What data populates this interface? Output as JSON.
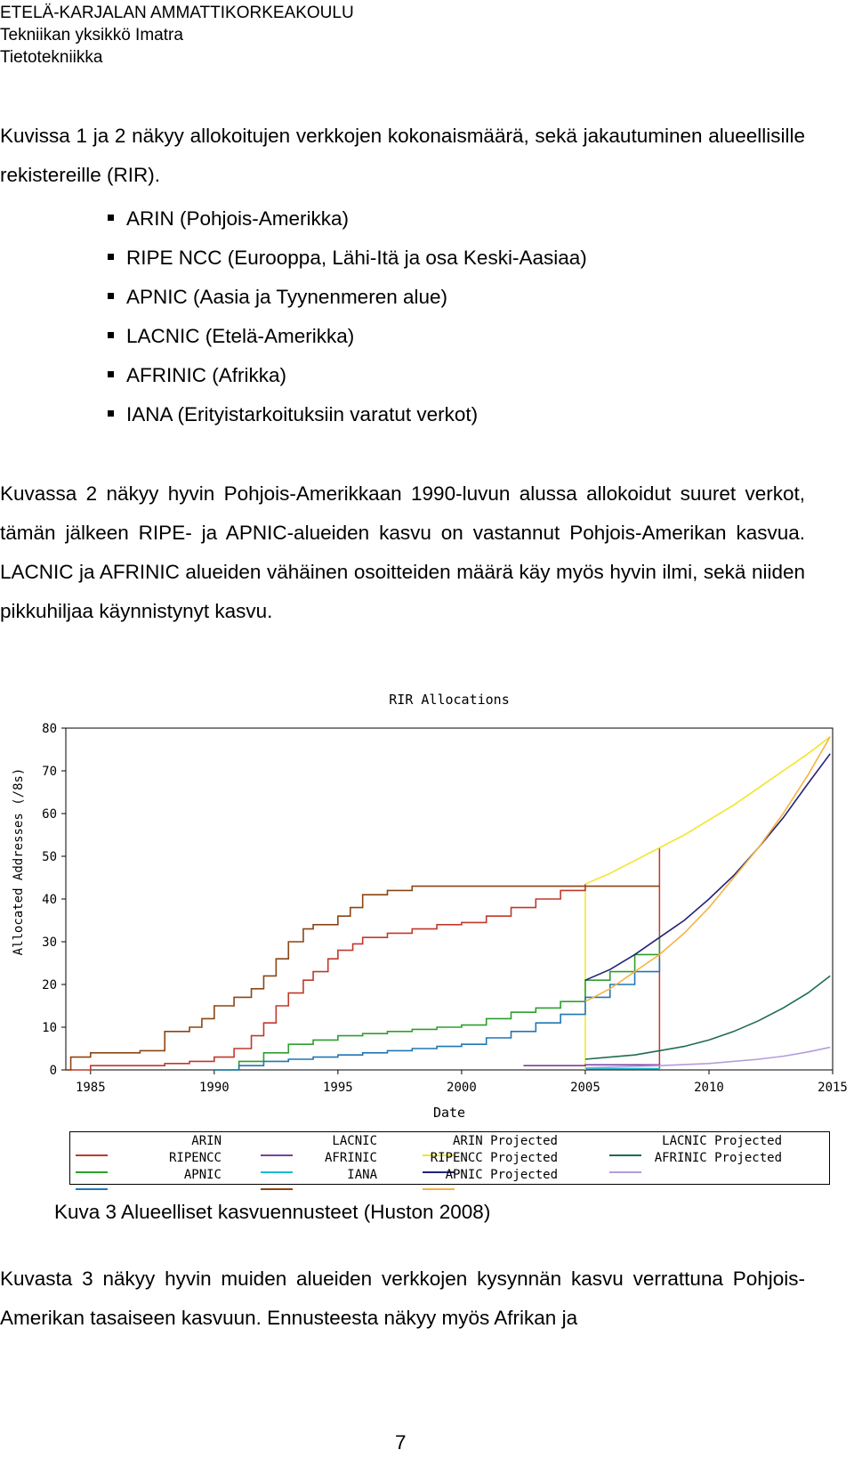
{
  "header": {
    "line1": "ETELÄ-KARJALAN AMMATTIKORKEAKOULU",
    "line2": "Tekniikan yksikkö Imatra",
    "line3": "Tietotekniikka"
  },
  "intro": "Kuvissa 1 ja 2 näkyy allokoitujen verkkojen kokonaismäärä, sekä jakautuminen alueellisille rekistereille (RIR).",
  "bullets": [
    "ARIN (Pohjois-Amerikka)",
    "RIPE NCC (Eurooppa, Lähi-Itä ja osa Keski-Aasiaa)",
    "APNIC (Aasia ja Tyynenmeren alue)",
    "LACNIC (Etelä-Amerikka)",
    "AFRINIC (Afrikka)",
    "IANA (Erityistarkoituksiin varatut verkot)"
  ],
  "paragraph2": "Kuvassa 2 näkyy hyvin Pohjois-Amerikkaan 1990-luvun alussa allokoidut suuret verkot, tämän jälkeen RIPE- ja APNIC-alueiden kasvu on vastannut Pohjois-Amerikan kasvua. LACNIC ja AFRINIC alueiden vähäinen osoitteiden määrä käy myös hyvin ilmi, sekä niiden pikkuhiljaa käynnistynyt kasvu.",
  "caption": "Kuva 3 Alueelliset kasvuennusteet (Huston 2008)",
  "paragraph3": "Kuvasta 3 näkyy hyvin muiden alueiden verkkojen kysynnän kasvu verrattuna Pohjois-Amerikan tasaiseen kasvuun. Ennusteesta näkyy myös Afrikan ja",
  "page_number": "7",
  "chart_data": {
    "type": "line",
    "title": "RIR Allocations",
    "xlabel": "Date",
    "ylabel": "Allocated Addresses (/8s)",
    "xlim": [
      1984,
      2015
    ],
    "ylim": [
      0,
      80
    ],
    "x_ticks": [
      "1985",
      "1990",
      "1995",
      "2000",
      "2005",
      "2010",
      "2015"
    ],
    "y_ticks": [
      "0",
      "10",
      "20",
      "30",
      "40",
      "50",
      "60",
      "70",
      "80"
    ],
    "legend_position": "bottom",
    "legend_columns": [
      [
        "ARIN",
        "RIPENCC",
        "APNIC"
      ],
      [
        "LACNIC",
        "AFRINIC",
        "IANA"
      ],
      [
        "ARIN Projected",
        "RIPENCC Projected",
        "APNIC Projected"
      ],
      [
        "LACNIC Projected",
        "AFRINIC Projected"
      ]
    ],
    "series": [
      {
        "name": "ARIN",
        "color": "#c0392b",
        "style": "step",
        "points": [
          [
            1984,
            0
          ],
          [
            1985,
            1
          ],
          [
            1986,
            1
          ],
          [
            1988,
            1.5
          ],
          [
            1989,
            2
          ],
          [
            1990,
            3
          ],
          [
            1990.8,
            5
          ],
          [
            1991.5,
            8
          ],
          [
            1992,
            11
          ],
          [
            1992.5,
            15
          ],
          [
            1993,
            18
          ],
          [
            1993.6,
            21
          ],
          [
            1994,
            23
          ],
          [
            1994.6,
            26
          ],
          [
            1995,
            28
          ],
          [
            1995.6,
            29.5
          ],
          [
            1996,
            31
          ],
          [
            1997,
            32
          ],
          [
            1998,
            33
          ],
          [
            1999,
            34
          ],
          [
            2000,
            34.5
          ],
          [
            2001,
            36
          ],
          [
            2002,
            38
          ],
          [
            2003,
            40
          ],
          [
            2004,
            42
          ],
          [
            2005,
            43.5
          ]
        ]
      },
      {
        "name": "RIPENCC",
        "color": "#2ca02c",
        "style": "step",
        "points": [
          [
            1990,
            0
          ],
          [
            1991,
            2
          ],
          [
            1992,
            4
          ],
          [
            1993,
            6
          ],
          [
            1994,
            7
          ],
          [
            1995,
            8
          ],
          [
            1996,
            8.5
          ],
          [
            1997,
            9
          ],
          [
            1998,
            9.5
          ],
          [
            1999,
            10
          ],
          [
            2000,
            10.5
          ],
          [
            2001,
            12
          ],
          [
            2002,
            13.5
          ],
          [
            2003,
            14.5
          ],
          [
            2004,
            16
          ],
          [
            2005,
            21
          ],
          [
            2006,
            23
          ],
          [
            2007,
            27
          ],
          [
            2008,
            31
          ]
        ]
      },
      {
        "name": "APNIC",
        "color": "#1f77b4",
        "style": "step",
        "points": [
          [
            1990,
            0
          ],
          [
            1991,
            1
          ],
          [
            1992,
            2
          ],
          [
            1993,
            2.5
          ],
          [
            1994,
            3
          ],
          [
            1995,
            3.5
          ],
          [
            1996,
            4
          ],
          [
            1997,
            4.5
          ],
          [
            1998,
            5
          ],
          [
            1999,
            5.5
          ],
          [
            2000,
            6
          ],
          [
            2001,
            7.5
          ],
          [
            2002,
            9
          ],
          [
            2003,
            11
          ],
          [
            2004,
            13
          ],
          [
            2005,
            17
          ],
          [
            2006,
            20
          ],
          [
            2007,
            23
          ],
          [
            2008,
            26
          ]
        ]
      },
      {
        "name": "LACNIC",
        "color": "#7b3fa0",
        "style": "step",
        "points": [
          [
            2002.5,
            1
          ],
          [
            2005,
            1.2
          ],
          [
            2008,
            1.5
          ]
        ]
      },
      {
        "name": "AFRINIC",
        "color": "#17becf",
        "style": "step",
        "points": [
          [
            2005,
            0.3
          ],
          [
            2008,
            0.6
          ]
        ]
      },
      {
        "name": "IANA",
        "color": "#8b4513",
        "style": "step",
        "points": [
          [
            1984,
            0
          ],
          [
            1984.2,
            3
          ],
          [
            1985,
            4
          ],
          [
            1987,
            4.5
          ],
          [
            1988,
            9
          ],
          [
            1989,
            10
          ],
          [
            1989.5,
            12
          ],
          [
            1990,
            15
          ],
          [
            1990.8,
            17
          ],
          [
            1991.5,
            19
          ],
          [
            1992,
            22
          ],
          [
            1992.5,
            26
          ],
          [
            1993,
            30
          ],
          [
            1993.6,
            33
          ],
          [
            1994,
            34
          ],
          [
            1995,
            36
          ],
          [
            1995.5,
            38
          ],
          [
            1996,
            41
          ],
          [
            1997,
            42
          ],
          [
            1998,
            43
          ],
          [
            2000,
            43
          ],
          [
            2008,
            43
          ]
        ]
      },
      {
        "name": "ARIN Projected",
        "color": "#f1e62b",
        "style": "line",
        "points": [
          [
            2005,
            43.5
          ],
          [
            2006,
            46
          ],
          [
            2007,
            49
          ],
          [
            2008,
            52
          ],
          [
            2009,
            55
          ],
          [
            2010,
            58.5
          ],
          [
            2011,
            62
          ],
          [
            2012,
            66
          ],
          [
            2013,
            70
          ],
          [
            2014,
            74
          ],
          [
            2014.9,
            78
          ]
        ]
      },
      {
        "name": "RIPENCC Projected",
        "color": "#22227a",
        "style": "line",
        "points": [
          [
            2005,
            21
          ],
          [
            2006,
            23.5
          ],
          [
            2007,
            27
          ],
          [
            2008,
            31
          ],
          [
            2009,
            35
          ],
          [
            2010,
            40
          ],
          [
            2011,
            45.5
          ],
          [
            2012,
            52
          ],
          [
            2013,
            59
          ],
          [
            2014,
            67
          ],
          [
            2014.9,
            74
          ]
        ]
      },
      {
        "name": "APNIC Projected",
        "color": "#f5b342",
        "style": "line",
        "points": [
          [
            2005,
            16
          ],
          [
            2006,
            19
          ],
          [
            2007,
            23
          ],
          [
            2008,
            27
          ],
          [
            2009,
            32
          ],
          [
            2010,
            38
          ],
          [
            2011,
            45
          ],
          [
            2012,
            52
          ],
          [
            2013,
            60
          ],
          [
            2014,
            69
          ],
          [
            2014.9,
            78
          ]
        ]
      },
      {
        "name": "LACNIC Projected",
        "color": "#1f6b4f",
        "style": "line",
        "points": [
          [
            2005,
            2.5
          ],
          [
            2006,
            3
          ],
          [
            2007,
            3.5
          ],
          [
            2008,
            4.5
          ],
          [
            2009,
            5.5
          ],
          [
            2010,
            7
          ],
          [
            2011,
            9
          ],
          [
            2012,
            11.5
          ],
          [
            2013,
            14.5
          ],
          [
            2014,
            18
          ],
          [
            2014.9,
            22
          ]
        ]
      },
      {
        "name": "AFRINIC Projected",
        "color": "#b39ddb",
        "style": "line",
        "points": [
          [
            2005,
            0.5
          ],
          [
            2008,
            1
          ],
          [
            2010,
            1.5
          ],
          [
            2012,
            2.5
          ],
          [
            2013,
            3.2
          ],
          [
            2014,
            4.2
          ],
          [
            2014.9,
            5.3
          ]
        ]
      }
    ],
    "markers": [
      {
        "x": 2005,
        "from": 0,
        "to": 43.5,
        "color": "#f1e62b"
      },
      {
        "x": 2008,
        "from": 0,
        "to": 52,
        "color": "#c0392b"
      }
    ]
  }
}
